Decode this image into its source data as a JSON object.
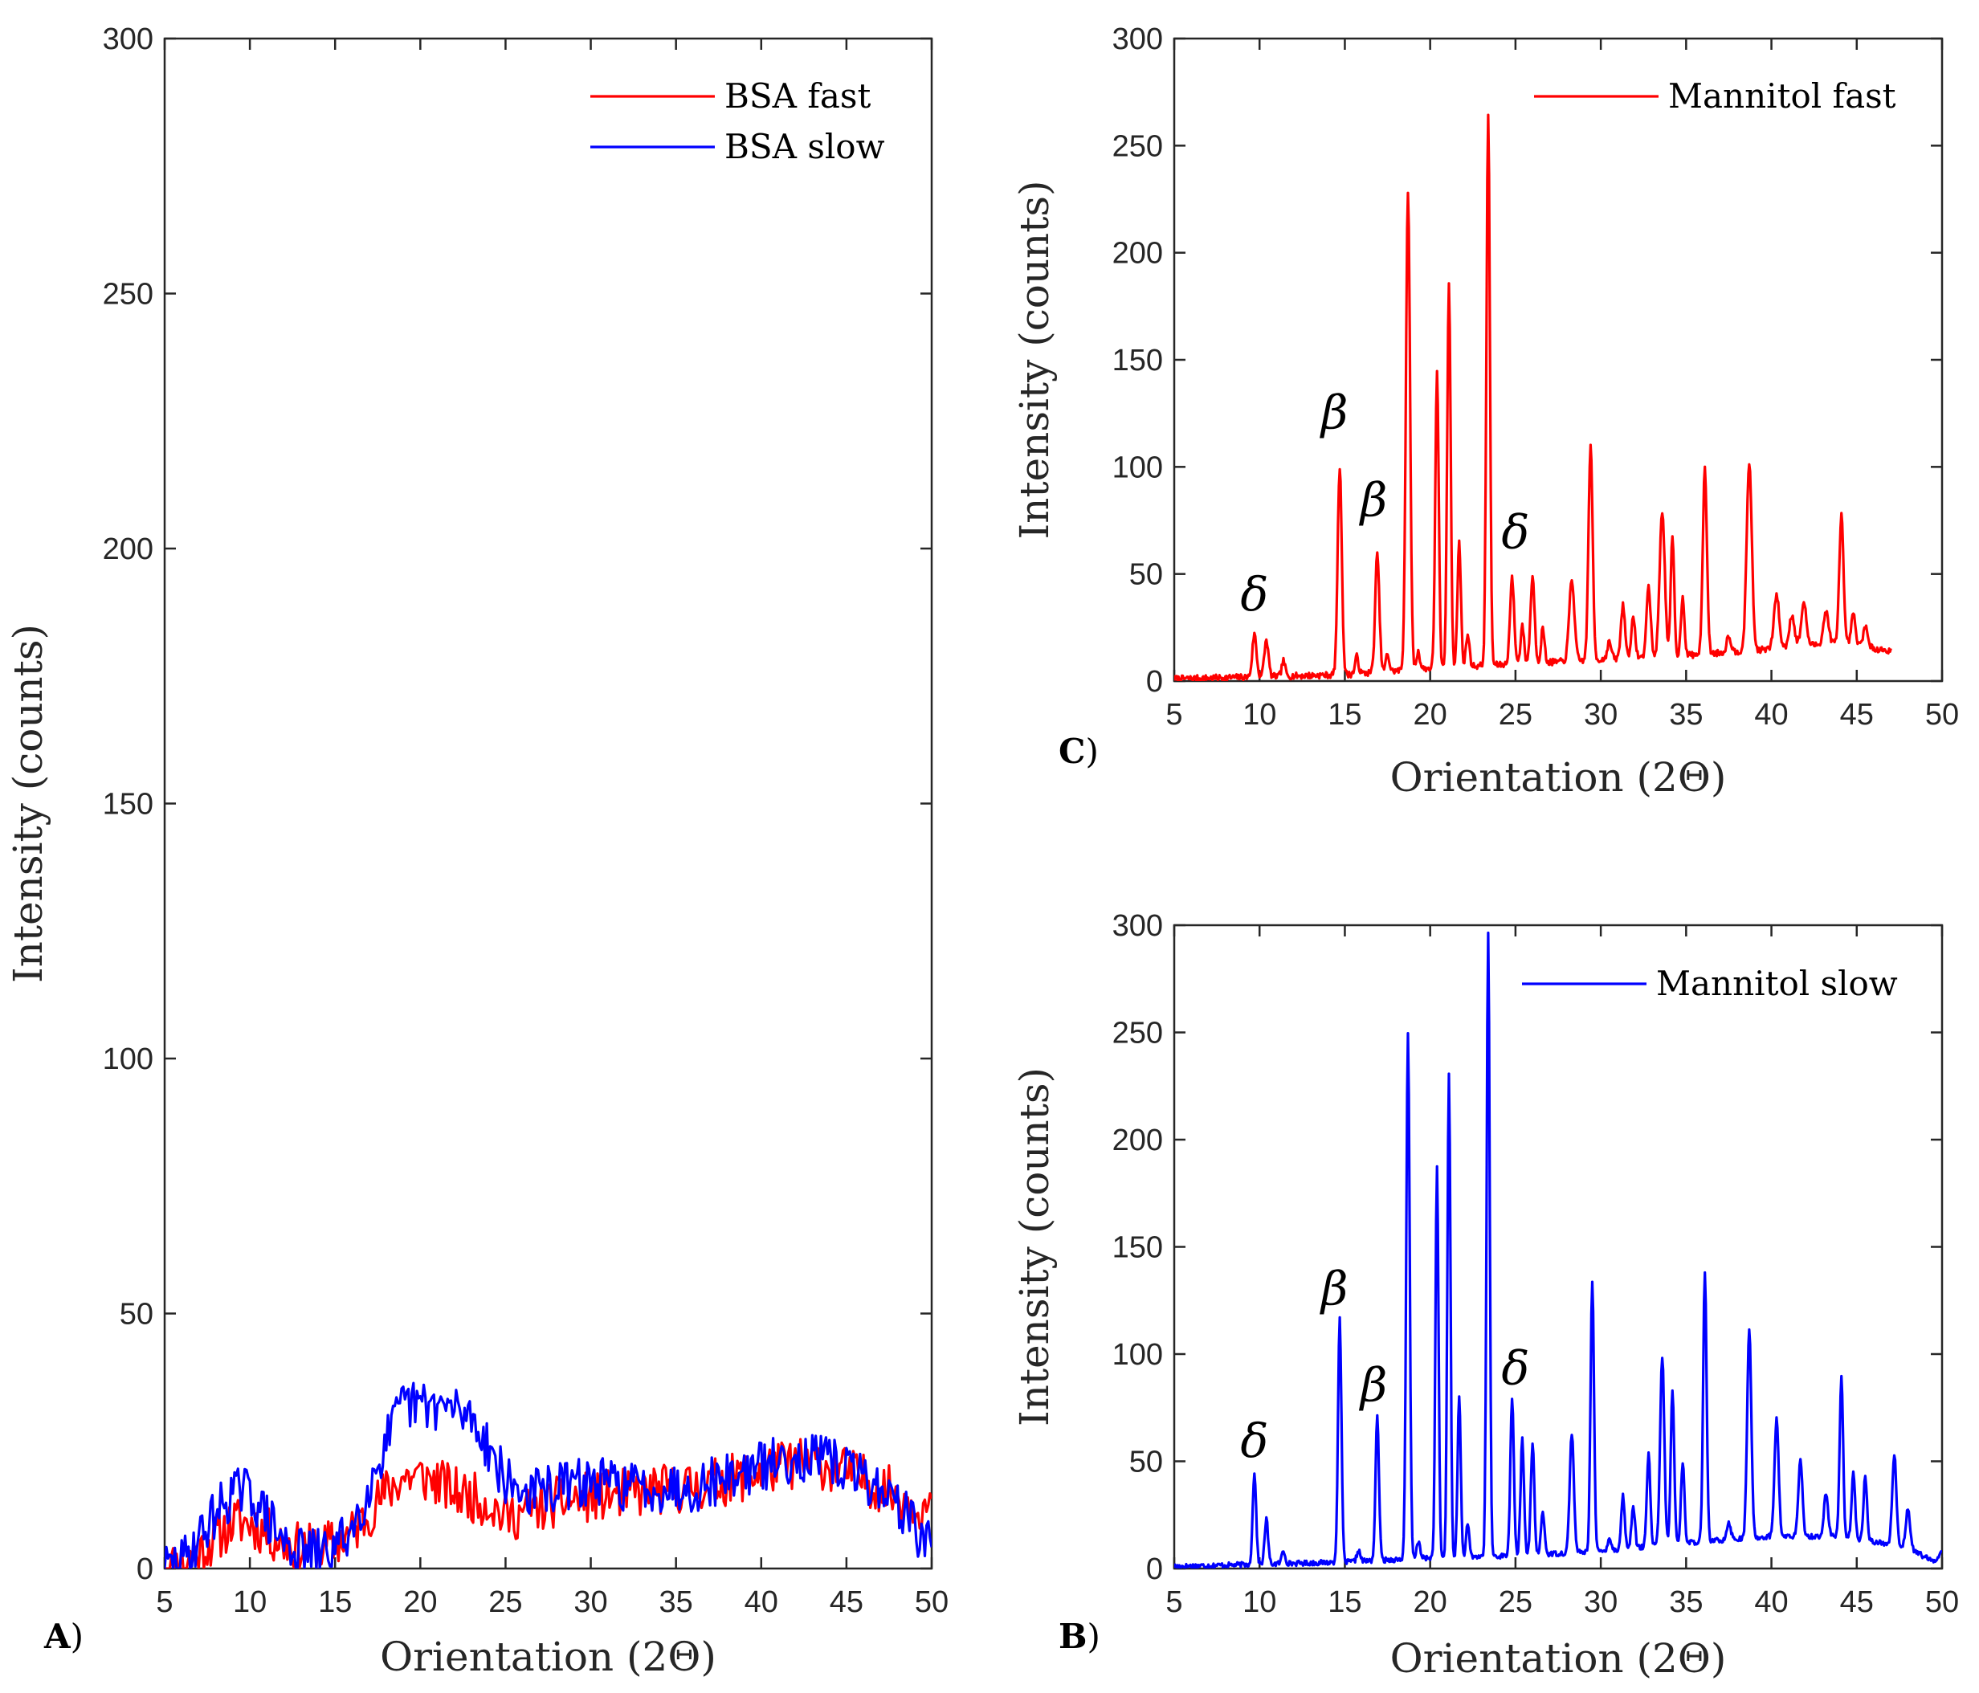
{
  "chart_data": [
    {
      "id": "A",
      "type": "line",
      "panel_label": "A",
      "xlabel": "Orientation (2Θ)",
      "ylabel": "Intensity (counts)",
      "xlim": [
        5,
        50
      ],
      "ylim": [
        0,
        300
      ],
      "xticks": [
        "5",
        "10",
        "15",
        "20",
        "25",
        "30",
        "35",
        "40",
        "45",
        "50"
      ],
      "yticks": [
        "0",
        "50",
        "100",
        "150",
        "200",
        "250",
        "300"
      ],
      "grid": false,
      "legend_position": "top-right",
      "series": [
        {
          "name": "BSA fast",
          "color": "#ff0000",
          "kind": "noise",
          "seed": 11,
          "noise": 5,
          "xrange": [
            5,
            50
          ],
          "step": 0.1,
          "baseline": [
            [
              5,
              0
            ],
            [
              6,
              1
            ],
            [
              7,
              3
            ],
            [
              8,
              6
            ],
            [
              9,
              9
            ],
            [
              10,
              9
            ],
            [
              11,
              7
            ],
            [
              12,
              5
            ],
            [
              13,
              4
            ],
            [
              14,
              4
            ],
            [
              15,
              5
            ],
            [
              16,
              7
            ],
            [
              17,
              11
            ],
            [
              18,
              15
            ],
            [
              19,
              18
            ],
            [
              20,
              18
            ],
            [
              21,
              17
            ],
            [
              22,
              15
            ],
            [
              23,
              14
            ],
            [
              24,
              13
            ],
            [
              25,
              10
            ],
            [
              26,
              11
            ],
            [
              27,
              12
            ],
            [
              28,
              13
            ],
            [
              30,
              14
            ],
            [
              33,
              15
            ],
            [
              36,
              16
            ],
            [
              39,
              18
            ],
            [
              41,
              20
            ],
            [
              43,
              21
            ],
            [
              45,
              19
            ],
            [
              47,
              16
            ],
            [
              49,
              13
            ],
            [
              50,
              11
            ]
          ]
        },
        {
          "name": "BSA slow",
          "color": "#0000ff",
          "kind": "noise",
          "seed": 29,
          "noise": 5,
          "xrange": [
            5,
            50
          ],
          "step": 0.1,
          "baseline": [
            [
              5,
              0
            ],
            [
              6,
              1
            ],
            [
              7,
              6
            ],
            [
              8,
              11
            ],
            [
              9,
              15
            ],
            [
              10,
              15
            ],
            [
              11,
              10
            ],
            [
              12,
              5
            ],
            [
              13,
              3
            ],
            [
              14,
              3
            ],
            [
              15,
              4
            ],
            [
              16,
              8
            ],
            [
              17,
              16
            ],
            [
              18,
              25
            ],
            [
              19,
              32
            ],
            [
              20,
              32
            ],
            [
              21,
              32
            ],
            [
              22,
              31
            ],
            [
              23,
              30
            ],
            [
              24,
              24
            ],
            [
              25,
              17
            ],
            [
              26,
              15
            ],
            [
              27,
              15
            ],
            [
              28,
              16
            ],
            [
              30,
              17
            ],
            [
              33,
              16
            ],
            [
              36,
              16
            ],
            [
              38,
              18
            ],
            [
              40,
              20
            ],
            [
              42,
              22
            ],
            [
              44,
              21
            ],
            [
              46,
              18
            ],
            [
              48,
              13
            ],
            [
              49,
              8
            ],
            [
              50,
              4
            ]
          ]
        }
      ]
    },
    {
      "id": "C",
      "type": "line",
      "panel_label": "C",
      "xlabel": "Orientation (2Θ)",
      "ylabel": "Intensity (counts)",
      "xlim": [
        5,
        50
      ],
      "ylim": [
        0,
        300
      ],
      "xticks": [
        "5",
        "10",
        "15",
        "20",
        "25",
        "30",
        "35",
        "40",
        "45",
        "50"
      ],
      "yticks": [
        "0",
        "50",
        "100",
        "150",
        "200",
        "250",
        "300"
      ],
      "grid": false,
      "legend_position": "top-right",
      "annotations": [
        {
          "text": "δ",
          "x": 9.7,
          "y": 33
        },
        {
          "text": "β",
          "x": 14.4,
          "y": 118
        },
        {
          "text": "β",
          "x": 16.7,
          "y": 77
        },
        {
          "text": "δ",
          "x": 25.0,
          "y": 62
        }
      ],
      "series": [
        {
          "name": "Mannitol fast",
          "color": "#ff0000",
          "kind": "peaks",
          "seed": 7,
          "noise": 1.5,
          "xrange": [
            5,
            47
          ],
          "step": 0.05,
          "baseline": [
            [
              5,
              1
            ],
            [
              10,
              2
            ],
            [
              15,
              3
            ],
            [
              20,
              6
            ],
            [
              25,
              8
            ],
            [
              30,
              10
            ],
            [
              35,
              12
            ],
            [
              40,
              15
            ],
            [
              44,
              18
            ],
            [
              47,
              14
            ]
          ],
          "peaks": [
            [
              9.7,
              20,
              0.12
            ],
            [
              10.4,
              17,
              0.12
            ],
            [
              11.4,
              7,
              0.1
            ],
            [
              14.7,
              97,
              0.12
            ],
            [
              15.7,
              8,
              0.1
            ],
            [
              16.9,
              55,
              0.12
            ],
            [
              17.5,
              8,
              0.1
            ],
            [
              18.7,
              224,
              0.12
            ],
            [
              19.3,
              8,
              0.1
            ],
            [
              20.4,
              138,
              0.1
            ],
            [
              21.1,
              180,
              0.1
            ],
            [
              21.7,
              58,
              0.1
            ],
            [
              22.2,
              15,
              0.1
            ],
            [
              23.4,
              258,
              0.1
            ],
            [
              24.8,
              40,
              0.12
            ],
            [
              25.4,
              18,
              0.1
            ],
            [
              26.0,
              40,
              0.12
            ],
            [
              26.6,
              16,
              0.1
            ],
            [
              28.3,
              38,
              0.15
            ],
            [
              29.4,
              100,
              0.12
            ],
            [
              30.5,
              8,
              0.12
            ],
            [
              31.3,
              25,
              0.12
            ],
            [
              31.9,
              18,
              0.12
            ],
            [
              32.8,
              33,
              0.12
            ],
            [
              33.6,
              68,
              0.15
            ],
            [
              34.2,
              56,
              0.1
            ],
            [
              34.8,
              28,
              0.1
            ],
            [
              36.1,
              86,
              0.12
            ],
            [
              37.5,
              8,
              0.12
            ],
            [
              38.7,
              88,
              0.15
            ],
            [
              40.3,
              25,
              0.15
            ],
            [
              41.2,
              15,
              0.15
            ],
            [
              41.9,
              20,
              0.15
            ],
            [
              43.2,
              15,
              0.15
            ],
            [
              44.1,
              60,
              0.12
            ],
            [
              44.8,
              14,
              0.12
            ],
            [
              45.5,
              10,
              0.12
            ]
          ]
        }
      ]
    },
    {
      "id": "B",
      "type": "line",
      "panel_label": "B",
      "xlabel": "Orientation (2Θ)",
      "ylabel": "Intensity (counts)",
      "xlim": [
        5,
        50
      ],
      "ylim": [
        0,
        300
      ],
      "xticks": [
        "5",
        "10",
        "15",
        "20",
        "25",
        "30",
        "35",
        "40",
        "45",
        "50"
      ],
      "yticks": [
        "0",
        "50",
        "100",
        "150",
        "200",
        "250",
        "300"
      ],
      "grid": false,
      "legend_position": "top-right",
      "annotations": [
        {
          "text": "δ",
          "x": 9.7,
          "y": 52
        },
        {
          "text": "β",
          "x": 14.4,
          "y": 123
        },
        {
          "text": "β",
          "x": 16.7,
          "y": 78
        },
        {
          "text": "δ",
          "x": 25.0,
          "y": 86
        }
      ],
      "series": [
        {
          "name": "Mannitol slow",
          "color": "#0000ff",
          "kind": "peaks",
          "seed": 17,
          "noise": 1.2,
          "xrange": [
            5,
            50
          ],
          "step": 0.05,
          "baseline": [
            [
              5,
              1
            ],
            [
              10,
              2
            ],
            [
              15,
              3
            ],
            [
              20,
              5
            ],
            [
              25,
              6
            ],
            [
              30,
              8
            ],
            [
              35,
              12
            ],
            [
              40,
              15
            ],
            [
              44,
              15
            ],
            [
              48,
              10
            ],
            [
              49.5,
              3
            ],
            [
              50,
              8
            ]
          ],
          "peaks": [
            [
              9.7,
              43,
              0.1
            ],
            [
              10.4,
              21,
              0.1
            ],
            [
              11.4,
              6,
              0.1
            ],
            [
              14.7,
              113,
              0.1
            ],
            [
              15.8,
              5,
              0.1
            ],
            [
              16.9,
              67,
              0.1
            ],
            [
              18.7,
              245,
              0.1
            ],
            [
              19.3,
              8,
              0.1
            ],
            [
              20.4,
              182,
              0.09
            ],
            [
              21.1,
              226,
              0.09
            ],
            [
              21.7,
              76,
              0.09
            ],
            [
              22.2,
              15,
              0.09
            ],
            [
              23.4,
              290,
              0.09
            ],
            [
              24.8,
              74,
              0.1
            ],
            [
              25.4,
              54,
              0.1
            ],
            [
              26.0,
              52,
              0.1
            ],
            [
              26.6,
              20,
              0.1
            ],
            [
              28.3,
              56,
              0.12
            ],
            [
              29.5,
              127,
              0.1
            ],
            [
              30.5,
              6,
              0.1
            ],
            [
              31.3,
              25,
              0.1
            ],
            [
              31.9,
              20,
              0.1
            ],
            [
              32.8,
              43,
              0.1
            ],
            [
              33.6,
              88,
              0.12
            ],
            [
              34.2,
              72,
              0.1
            ],
            [
              34.8,
              38,
              0.1
            ],
            [
              36.1,
              125,
              0.1
            ],
            [
              37.5,
              8,
              0.12
            ],
            [
              38.7,
              98,
              0.12
            ],
            [
              40.3,
              55,
              0.12
            ],
            [
              41.7,
              35,
              0.12
            ],
            [
              43.2,
              20,
              0.12
            ],
            [
              44.1,
              75,
              0.1
            ],
            [
              44.8,
              30,
              0.1
            ],
            [
              45.5,
              30,
              0.1
            ],
            [
              47.2,
              42,
              0.12
            ],
            [
              48.0,
              18,
              0.12
            ]
          ]
        }
      ]
    }
  ]
}
